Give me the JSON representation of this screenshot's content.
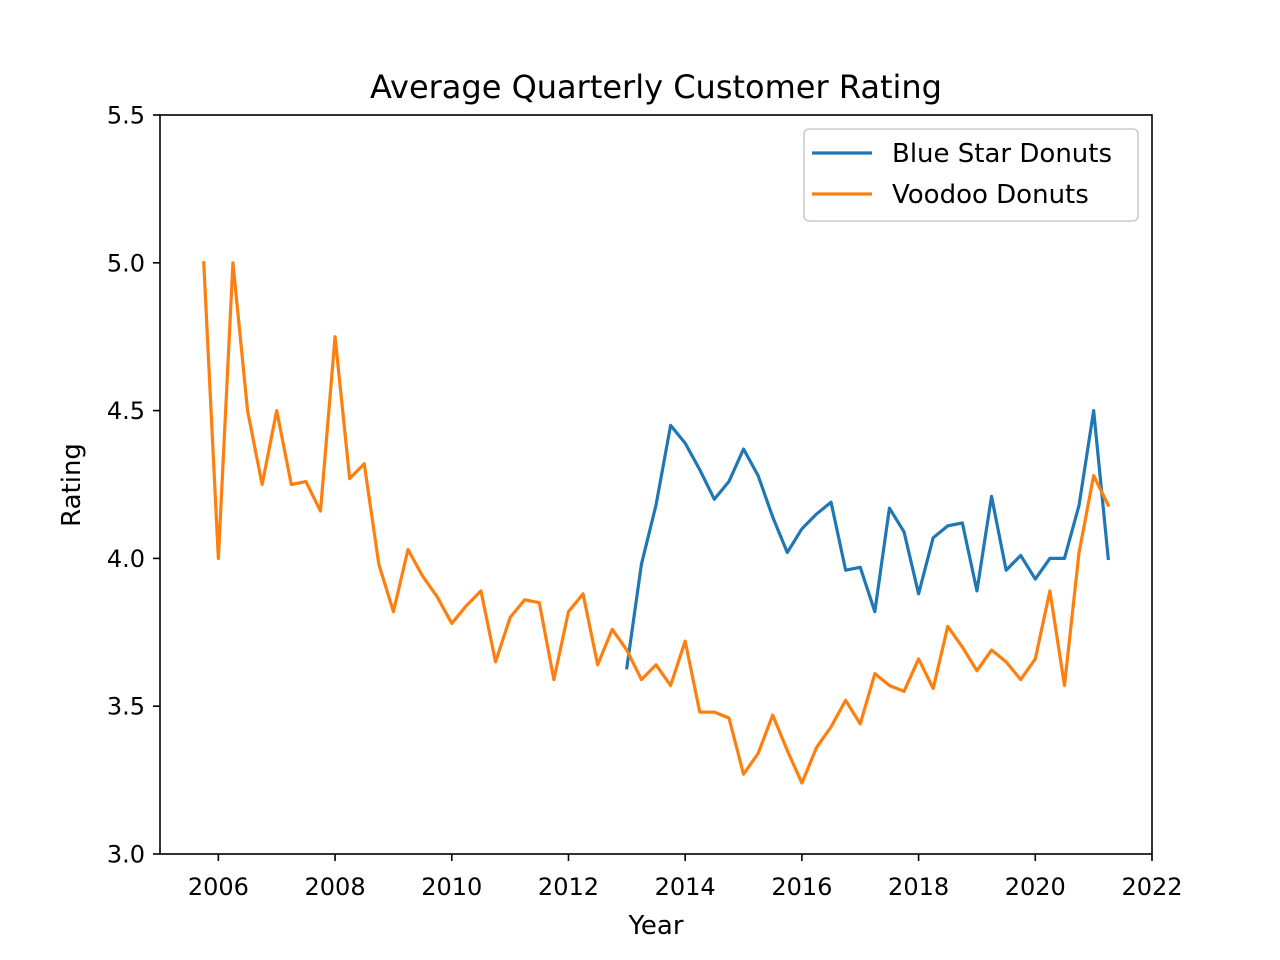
{
  "chart_data": {
    "type": "line",
    "title": "Average Quarterly Customer Rating",
    "xlabel": "Year",
    "ylabel": "Rating",
    "xlim": [
      2005.0,
      2022.0
    ],
    "ylim": [
      3.0,
      5.5
    ],
    "xticks": [
      "2006",
      "2008",
      "2010",
      "2012",
      "2014",
      "2016",
      "2018",
      "2020",
      "2022"
    ],
    "yticks": [
      "3.0",
      "3.5",
      "4.0",
      "4.5",
      "5.0",
      "5.5"
    ],
    "grid": false,
    "legend": "top-right",
    "series": [
      {
        "name": "Blue Star Donuts",
        "color": "#1f77b4",
        "x": [
          2013.0,
          2013.25,
          2013.5,
          2013.75,
          2014.0,
          2014.25,
          2014.5,
          2014.75,
          2015.0,
          2015.25,
          2015.5,
          2015.75,
          2016.0,
          2016.25,
          2016.5,
          2016.75,
          2017.0,
          2017.25,
          2017.5,
          2017.75,
          2018.0,
          2018.25,
          2018.5,
          2018.75,
          2019.0,
          2019.25,
          2019.5,
          2019.75,
          2020.0,
          2020.25,
          2020.5,
          2020.75,
          2021.0,
          2021.25
        ],
        "y": [
          3.63,
          3.98,
          4.18,
          4.45,
          4.39,
          4.3,
          4.2,
          4.26,
          4.37,
          4.28,
          4.14,
          4.02,
          4.1,
          4.15,
          4.19,
          3.96,
          3.97,
          3.82,
          4.17,
          4.09,
          3.88,
          4.07,
          4.11,
          4.12,
          3.89,
          4.21,
          3.96,
          4.01,
          3.93,
          4.0,
          4.0,
          4.18,
          4.5,
          4.0
        ]
      },
      {
        "name": "Voodoo Donuts",
        "color": "#ff7f0e",
        "x": [
          2005.75,
          2006.0,
          2006.25,
          2006.5,
          2006.75,
          2007.0,
          2007.25,
          2007.5,
          2007.75,
          2008.0,
          2008.25,
          2008.5,
          2008.75,
          2009.0,
          2009.25,
          2009.5,
          2009.75,
          2010.0,
          2010.25,
          2010.5,
          2010.75,
          2011.0,
          2011.25,
          2011.5,
          2011.75,
          2012.0,
          2012.25,
          2012.5,
          2012.75,
          2013.0,
          2013.25,
          2013.5,
          2013.75,
          2014.0,
          2014.25,
          2014.5,
          2014.75,
          2015.0,
          2015.25,
          2015.5,
          2015.75,
          2016.0,
          2016.25,
          2016.5,
          2016.75,
          2017.0,
          2017.25,
          2017.5,
          2017.75,
          2018.0,
          2018.25,
          2018.5,
          2018.75,
          2019.0,
          2019.25,
          2019.5,
          2019.75,
          2020.0,
          2020.25,
          2020.5,
          2020.75,
          2021.0,
          2021.25
        ],
        "y": [
          5.0,
          4.0,
          5.0,
          4.5,
          4.25,
          4.5,
          4.25,
          4.26,
          4.16,
          4.75,
          4.27,
          4.32,
          3.98,
          3.82,
          4.03,
          3.94,
          3.87,
          3.78,
          3.84,
          3.89,
          3.65,
          3.8,
          3.86,
          3.85,
          3.59,
          3.82,
          3.88,
          3.64,
          3.76,
          3.69,
          3.59,
          3.64,
          3.57,
          3.72,
          3.48,
          3.48,
          3.46,
          3.27,
          3.34,
          3.47,
          3.35,
          3.24,
          3.36,
          3.43,
          3.52,
          3.44,
          3.61,
          3.57,
          3.55,
          3.66,
          3.56,
          3.77,
          3.7,
          3.62,
          3.69,
          3.65,
          3.59,
          3.66,
          3.89,
          3.57,
          4.02,
          4.28,
          4.18
        ]
      }
    ]
  }
}
